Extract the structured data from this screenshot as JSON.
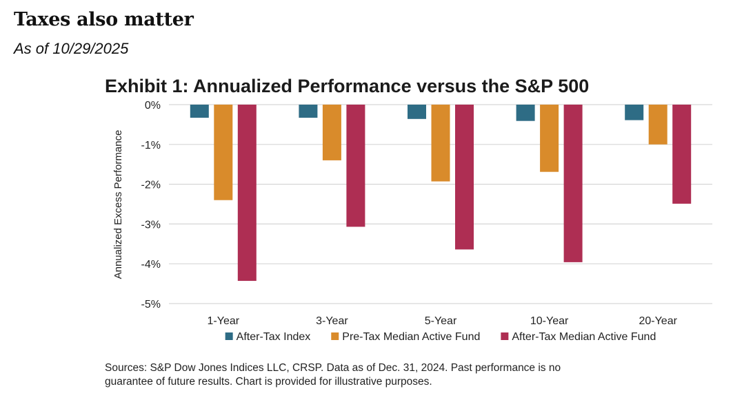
{
  "header": {
    "title": "Taxes also matter",
    "subtitle": "As of 10/29/2025"
  },
  "chart_data": {
    "type": "bar",
    "title": "Exhibit 1: Annualized Performance versus the S&P 500",
    "ylabel": "Annualized Excess Performance",
    "xlabel": "",
    "ylim": [
      -5,
      0
    ],
    "yticks": [
      0,
      -1,
      -2,
      -3,
      -4,
      -5
    ],
    "ytick_labels": [
      "0%",
      "-1%",
      "-2%",
      "-3%",
      "-4%",
      "-5%"
    ],
    "grid": true,
    "legend_position": "bottom",
    "categories": [
      "1-Year",
      "3-Year",
      "5-Year",
      "10-Year",
      "20-Year"
    ],
    "series": [
      {
        "name": "After-Tax Index",
        "color": "#2e6c85",
        "values": [
          -0.33,
          -0.33,
          -0.36,
          -0.41,
          -0.39
        ]
      },
      {
        "name": "Pre-Tax Median Active Fund",
        "color": "#d98b2b",
        "values": [
          -2.4,
          -1.4,
          -1.93,
          -1.69,
          -1.0
        ]
      },
      {
        "name": "After-Tax Median Active Fund",
        "color": "#ae2e53",
        "values": [
          -4.43,
          -3.07,
          -3.64,
          -3.96,
          -2.49
        ]
      }
    ]
  },
  "footer": {
    "sources_line1": "Sources: S&P Dow Jones Indices LLC, CRSP.  Data as of Dec. 31, 2024.  Past performance is no",
    "sources_line2": "guarantee of future results.  Chart is provided for illustrative purposes."
  }
}
